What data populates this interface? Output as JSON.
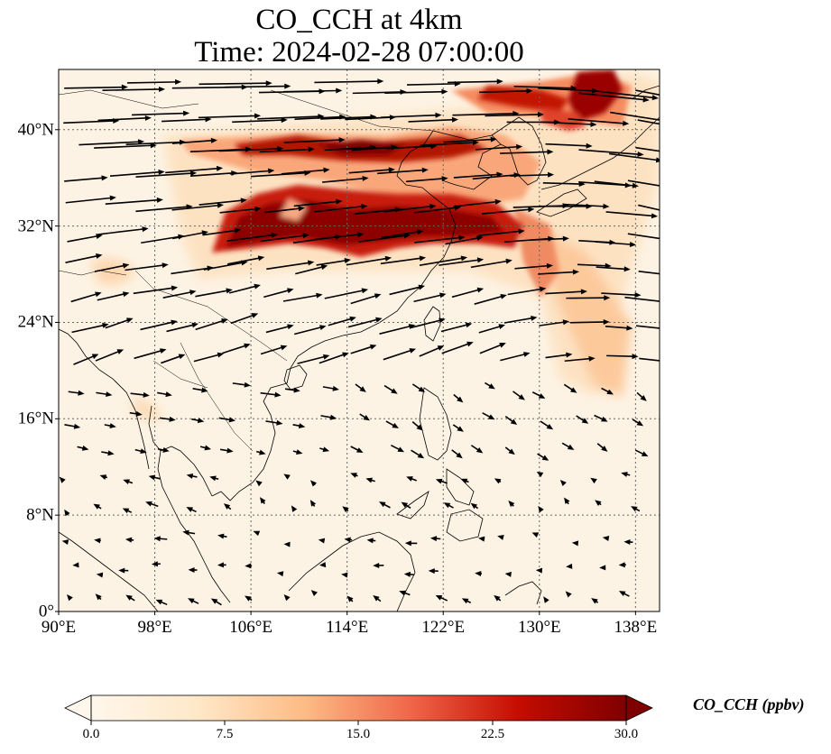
{
  "title_line1": "CO_CCH at 4km",
  "title_line2": "Time: 2024-02-28 07:00:00",
  "colorbar": {
    "label": "CO_CCH (ppbv)",
    "ticks": [
      "0.0",
      "7.5",
      "15.0",
      "22.5",
      "30.0"
    ],
    "min": 0,
    "max": 30,
    "extend": "both",
    "colormap": "OrRd"
  },
  "map": {
    "lon_range": [
      90,
      140
    ],
    "lat_range": [
      0,
      45
    ],
    "lat_ticks": [
      {
        "value": 0,
        "label": "0°"
      },
      {
        "value": 8,
        "label": "8°N"
      },
      {
        "value": 16,
        "label": "16°N"
      },
      {
        "value": 24,
        "label": "24°N"
      },
      {
        "value": 32,
        "label": "32°N"
      },
      {
        "value": 40,
        "label": "40°N"
      }
    ],
    "lon_ticks": [
      {
        "value": 90,
        "label": "90°E"
      },
      {
        "value": 98,
        "label": "98°E"
      },
      {
        "value": 106,
        "label": "106°E"
      },
      {
        "value": 114,
        "label": "114°E"
      },
      {
        "value": 122,
        "label": "122°E"
      },
      {
        "value": 130,
        "label": "130°E"
      },
      {
        "value": 138,
        "label": "138°E"
      }
    ],
    "gridlines": true
  },
  "colors": {
    "low": "#fff7ec",
    "mid": "#fdbb84",
    "high": "#d7301f",
    "max": "#7f0000",
    "coast": "#000000",
    "arrow": "#000000"
  }
}
